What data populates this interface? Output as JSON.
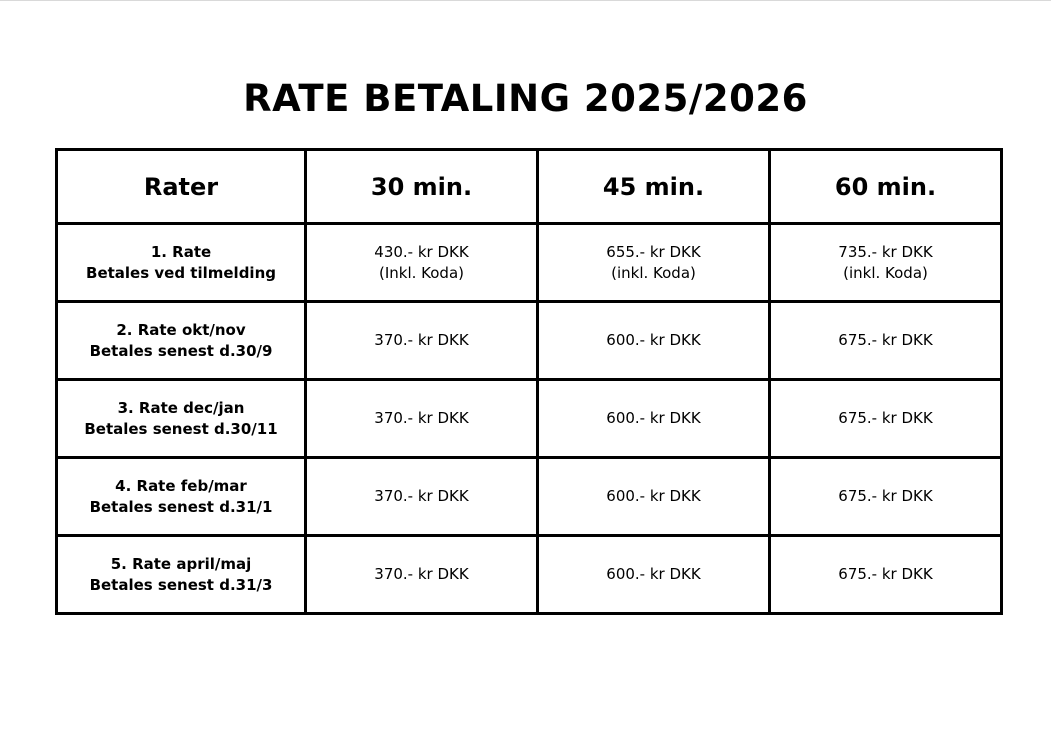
{
  "title": "RATE BETALING 2025/2026",
  "table": {
    "headers": [
      "Rater",
      "30 min.",
      "45 min.",
      "60 min."
    ],
    "rows": [
      {
        "label": [
          "1. Rate",
          "Betales ved tilmelding"
        ],
        "cells": [
          [
            "430.- kr DKK",
            "(Inkl. Koda)"
          ],
          [
            "655.- kr DKK",
            "(inkl. Koda)"
          ],
          [
            "735.- kr DKK",
            "(inkl. Koda)"
          ]
        ]
      },
      {
        "label": [
          "2. Rate okt/nov",
          "Betales senest d.30/9"
        ],
        "cells": [
          [
            "370.- kr DKK"
          ],
          [
            "600.- kr DKK"
          ],
          [
            "675.- kr DKK"
          ]
        ]
      },
      {
        "label": [
          "3. Rate dec/jan",
          "Betales senest d.30/11"
        ],
        "cells": [
          [
            "370.- kr DKK"
          ],
          [
            "600.- kr DKK"
          ],
          [
            "675.- kr DKK"
          ]
        ]
      },
      {
        "label": [
          "4. Rate feb/mar",
          "Betales senest d.31/1"
        ],
        "cells": [
          [
            "370.- kr DKK"
          ],
          [
            "600.- kr DKK"
          ],
          [
            "675.- kr DKK"
          ]
        ]
      },
      {
        "label": [
          "5. Rate april/maj",
          "Betales senest d.31/3"
        ],
        "cells": [
          [
            "370.- kr DKK"
          ],
          [
            "600.- kr DKK"
          ],
          [
            "675.- kr DKK"
          ]
        ]
      }
    ]
  }
}
